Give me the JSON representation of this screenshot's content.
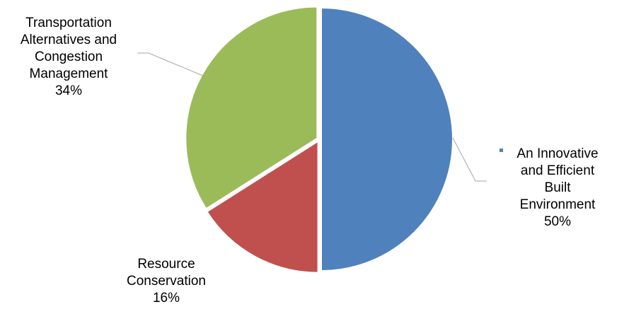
{
  "chart_data": {
    "type": "pie",
    "slices": [
      {
        "name_lines": [
          "An Innovative",
          "and Efficient",
          "Built",
          "Environment"
        ],
        "label": "An Innovative and Efficient Built Environment",
        "value": 50,
        "value_label": "50%",
        "color": "#4F81BD"
      },
      {
        "name_lines": [
          "Resource",
          "Conservation"
        ],
        "label": "Resource Conservation",
        "value": 16,
        "value_label": "16%",
        "color": "#C0504D"
      },
      {
        "name_lines": [
          "Transportation",
          "Alternatives and",
          "Congestion",
          "Management"
        ],
        "label": "Transportation Alternatives and Congestion Management",
        "value": 34,
        "value_label": "34%",
        "color": "#9BBB59"
      }
    ],
    "start_angle_deg": 0,
    "direction": "clockwise",
    "exploded": true,
    "legend": "none",
    "data_labels": "category name and percentage, outside with leader lines"
  }
}
